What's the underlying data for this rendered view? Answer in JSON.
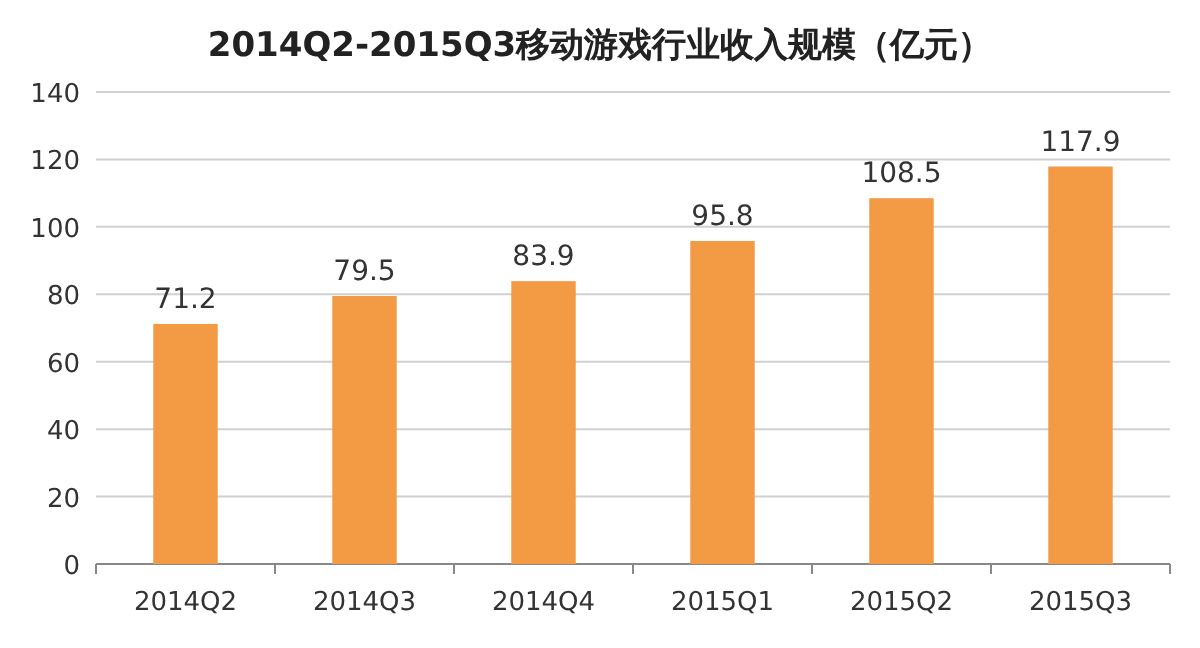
{
  "chart_data": {
    "type": "bar",
    "title": "2014Q2-2015Q3移动游戏行业收入规模（亿元）",
    "categories": [
      "2014Q2",
      "2014Q3",
      "2014Q4",
      "2015Q1",
      "2015Q2",
      "2015Q3"
    ],
    "values": [
      71.2,
      79.5,
      83.9,
      95.8,
      108.5,
      117.9
    ],
    "color": "#f39a45",
    "ylim": [
      0,
      140
    ],
    "yticks": [
      0,
      20,
      40,
      60,
      80,
      100,
      120,
      140
    ],
    "grid": "y",
    "data_labels": true
  }
}
